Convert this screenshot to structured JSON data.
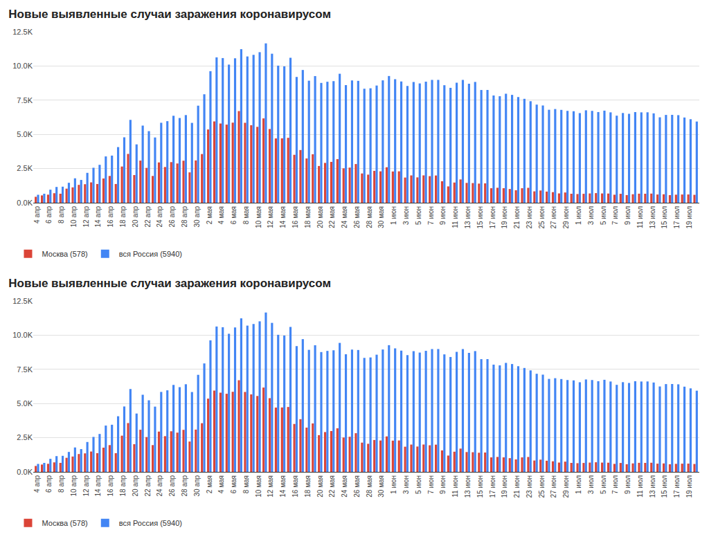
{
  "chart_data": [
    {
      "type": "bar",
      "title": "Новые выявленные случаи заражения коронавирусом",
      "categories": [
        "4 апр",
        null,
        "6 апр",
        null,
        "8 апр",
        null,
        "10 апр",
        null,
        "12 апр",
        null,
        "14 апр",
        null,
        "16 апр",
        null,
        "18 апр",
        null,
        "20 апр",
        null,
        "22 апр",
        null,
        "24 апр",
        null,
        "26 апр",
        null,
        "28 апр",
        null,
        "30 апр",
        null,
        "2 мая",
        null,
        "4 мая",
        null,
        "6 мая",
        null,
        "8 мая",
        null,
        "10 мая",
        null,
        "12 мая",
        null,
        "14 мая",
        null,
        "16 мая",
        null,
        "18 мая",
        null,
        "20 мая",
        null,
        "22 мая",
        null,
        "24 мая",
        null,
        "26 мая",
        null,
        "28 мая",
        null,
        "30 мая",
        null,
        "1 июн",
        null,
        "3 июн",
        null,
        "5 июн",
        null,
        "7 июн",
        null,
        "9 июн",
        null,
        "11 июн",
        null,
        "13 июн",
        null,
        "15 июн",
        null,
        "17 июн",
        null,
        "19 июн",
        null,
        "21 июн",
        null,
        "23 июн",
        null,
        "25 июн",
        null,
        "27 июн",
        null,
        "29 июн",
        null,
        "1 июл",
        null,
        "3 июл",
        null,
        "5 июл",
        null,
        "7 июл",
        null,
        "9 июл",
        null,
        "11 июл",
        null,
        "13 июл",
        null,
        "15 июл",
        null,
        "17 июл",
        null,
        "19 июл",
        null
      ],
      "series": [
        {
          "name": "Москва (578)",
          "color": "#db4437",
          "values": [
            434,
            536,
            591,
            697,
            660,
            1030,
            1124,
            1306,
            1355,
            1489,
            1370,
            1774,
            1959,
            1370,
            2649,
            3570,
            2026,
            3083,
            2548,
            1959,
            2948,
            2612,
            2971,
            2871,
            3075,
            2220,
            3093,
            3561,
            5358,
            5948,
            5795,
            5714,
            5858,
            6703,
            5846,
            5667,
            5551,
            6169,
            5392,
            4703,
            4712,
            4748,
            3505,
            3855,
            3238,
            3545,
            2688,
            2913,
            2988,
            3190,
            2516,
            2570,
            2830,
            2140,
            2054,
            2332,
            2297,
            2595,
            2286,
            2297,
            1842,
            1998,
            1855,
            2001,
            1947,
            1992,
            1572,
            1195,
            1477,
            1704,
            1451,
            1438,
            1400,
            1416,
            1061,
            1094,
            1063,
            1004,
            913,
            1061,
            1090,
            832,
            896,
            816,
            775,
            682,
            750,
            659,
            636,
            654,
            680,
            704,
            679,
            672,
            586,
            653,
            560,
            621,
            663,
            659,
            669,
            602,
            619,
            556,
            589,
            602,
            605,
            578
          ]
        },
        {
          "name": "вся Россия (5940)",
          "color": "#4285f4",
          "values": [
            582,
            658,
            954,
            1154,
            1175,
            1459,
            1786,
            1667,
            2186,
            2558,
            2774,
            3388,
            3448,
            4070,
            4785,
            6060,
            4268,
            5642,
            5236,
            4774,
            5849,
            5966,
            6361,
            6198,
            6411,
            5841,
            7099,
            7933,
            9623,
            10633,
            10581,
            10102,
            10559,
            11231,
            10699,
            10817,
            11012,
            11656,
            10899,
            10028,
            9974,
            10598,
            9200,
            9709,
            8926,
            9263,
            8764,
            8849,
            8894,
            9434,
            8599,
            8946,
            8915,
            8338,
            8371,
            8572,
            8952,
            9268,
            9035,
            8863,
            8536,
            8831,
            8726,
            8855,
            8984,
            8985,
            8595,
            8404,
            8779,
            8987,
            8706,
            8835,
            8246,
            8248,
            7843,
            7790,
            7972,
            7889,
            7728,
            7600,
            7425,
            7176,
            7113,
            6800,
            6852,
            6791,
            6719,
            6693,
            6556,
            6760,
            6718,
            6632,
            6736,
            6611,
            6368,
            6562,
            6509,
            6635,
            6611,
            6615,
            6537,
            6248,
            6422,
            6428,
            6406,
            6234,
            6109,
            5940
          ]
        }
      ],
      "ylim": [
        0,
        12500
      ],
      "yticks": [
        {
          "value": 0,
          "label": "0.0K"
        },
        {
          "value": 2500,
          "label": "2.5K"
        },
        {
          "value": 5000,
          "label": "5.0K"
        },
        {
          "value": 7500,
          "label": "7.5K"
        },
        {
          "value": 10000,
          "label": "10.0K"
        },
        {
          "value": 12500,
          "label": "12.5K"
        }
      ],
      "grid": true,
      "legend": "bottom-left"
    },
    {
      "type": "bar",
      "title": "Новые выявленные случаи заражения коронавирусом",
      "categories": [
        "4 апр",
        null,
        "6 апр",
        null,
        "8 апр",
        null,
        "10 апр",
        null,
        "12 апр",
        null,
        "14 апр",
        null,
        "16 апр",
        null,
        "18 апр",
        null,
        "20 апр",
        null,
        "22 апр",
        null,
        "24 апр",
        null,
        "26 апр",
        null,
        "28 апр",
        null,
        "30 апр",
        null,
        "2 мая",
        null,
        "4 мая",
        null,
        "6 мая",
        null,
        "8 мая",
        null,
        "10 мая",
        null,
        "12 мая",
        null,
        "14 мая",
        null,
        "16 мая",
        null,
        "18 мая",
        null,
        "20 мая",
        null,
        "22 мая",
        null,
        "24 мая",
        null,
        "26 мая",
        null,
        "28 мая",
        null,
        "30 мая",
        null,
        "1 июн",
        null,
        "3 июн",
        null,
        "5 июн",
        null,
        "7 июн",
        null,
        "9 июн",
        null,
        "11 июн",
        null,
        "13 июн",
        null,
        "15 июн",
        null,
        "17 июн",
        null,
        "19 июн",
        null,
        "21 июн",
        null,
        "23 июн",
        null,
        "25 июн",
        null,
        "27 июн",
        null,
        "29 июн",
        null,
        "1 июл",
        null,
        "3 июл",
        null,
        "5 июл",
        null,
        "7 июл",
        null,
        "9 июл",
        null,
        "11 июл",
        null,
        "13 июл",
        null,
        "15 июл",
        null,
        "17 июл",
        null,
        "19 июл",
        null
      ],
      "series": [
        {
          "name": "Москва (578)",
          "color": "#db4437",
          "values": [
            434,
            536,
            591,
            697,
            660,
            1030,
            1124,
            1306,
            1355,
            1489,
            1370,
            1774,
            1959,
            1370,
            2649,
            3570,
            2026,
            3083,
            2548,
            1959,
            2948,
            2612,
            2971,
            2871,
            3075,
            2220,
            3093,
            3561,
            5358,
            5948,
            5795,
            5714,
            5858,
            6703,
            5846,
            5667,
            5551,
            6169,
            5392,
            4703,
            4712,
            4748,
            3505,
            3855,
            3238,
            3545,
            2688,
            2913,
            2988,
            3190,
            2516,
            2570,
            2830,
            2140,
            2054,
            2332,
            2297,
            2595,
            2286,
            2297,
            1842,
            1998,
            1855,
            2001,
            1947,
            1992,
            1572,
            1195,
            1477,
            1704,
            1451,
            1438,
            1400,
            1416,
            1061,
            1094,
            1063,
            1004,
            913,
            1061,
            1090,
            832,
            896,
            816,
            775,
            682,
            750,
            659,
            636,
            654,
            680,
            704,
            679,
            672,
            586,
            653,
            560,
            621,
            663,
            659,
            669,
            602,
            619,
            556,
            589,
            602,
            605,
            578
          ]
        },
        {
          "name": "вся Россия (5940)",
          "color": "#4285f4",
          "values": [
            582,
            658,
            954,
            1154,
            1175,
            1459,
            1786,
            1667,
            2186,
            2558,
            2774,
            3388,
            3448,
            4070,
            4785,
            6060,
            4268,
            5642,
            5236,
            4774,
            5849,
            5966,
            6361,
            6198,
            6411,
            5841,
            7099,
            7933,
            9623,
            10633,
            10581,
            10102,
            10559,
            11231,
            10699,
            10817,
            11012,
            11656,
            10899,
            10028,
            9974,
            10598,
            9200,
            9709,
            8926,
            9263,
            8764,
            8849,
            8894,
            9434,
            8599,
            8946,
            8915,
            8338,
            8371,
            8572,
            8952,
            9268,
            9035,
            8863,
            8536,
            8831,
            8726,
            8855,
            8984,
            8985,
            8595,
            8404,
            8779,
            8987,
            8706,
            8835,
            8246,
            8248,
            7843,
            7790,
            7972,
            7889,
            7728,
            7600,
            7425,
            7176,
            7113,
            6800,
            6852,
            6791,
            6719,
            6693,
            6556,
            6760,
            6718,
            6632,
            6736,
            6611,
            6368,
            6562,
            6509,
            6635,
            6611,
            6615,
            6537,
            6248,
            6422,
            6428,
            6406,
            6234,
            6109,
            5940
          ]
        }
      ],
      "ylim": [
        0,
        12500
      ],
      "yticks": [
        {
          "value": 0,
          "label": "0.0K"
        },
        {
          "value": 2500,
          "label": "2.5K"
        },
        {
          "value": 5000,
          "label": "5.0K"
        },
        {
          "value": 7500,
          "label": "7.5K"
        },
        {
          "value": 10000,
          "label": "10.0K"
        },
        {
          "value": 12500,
          "label": "12.5K"
        }
      ],
      "grid": true,
      "legend": "bottom-left"
    }
  ]
}
